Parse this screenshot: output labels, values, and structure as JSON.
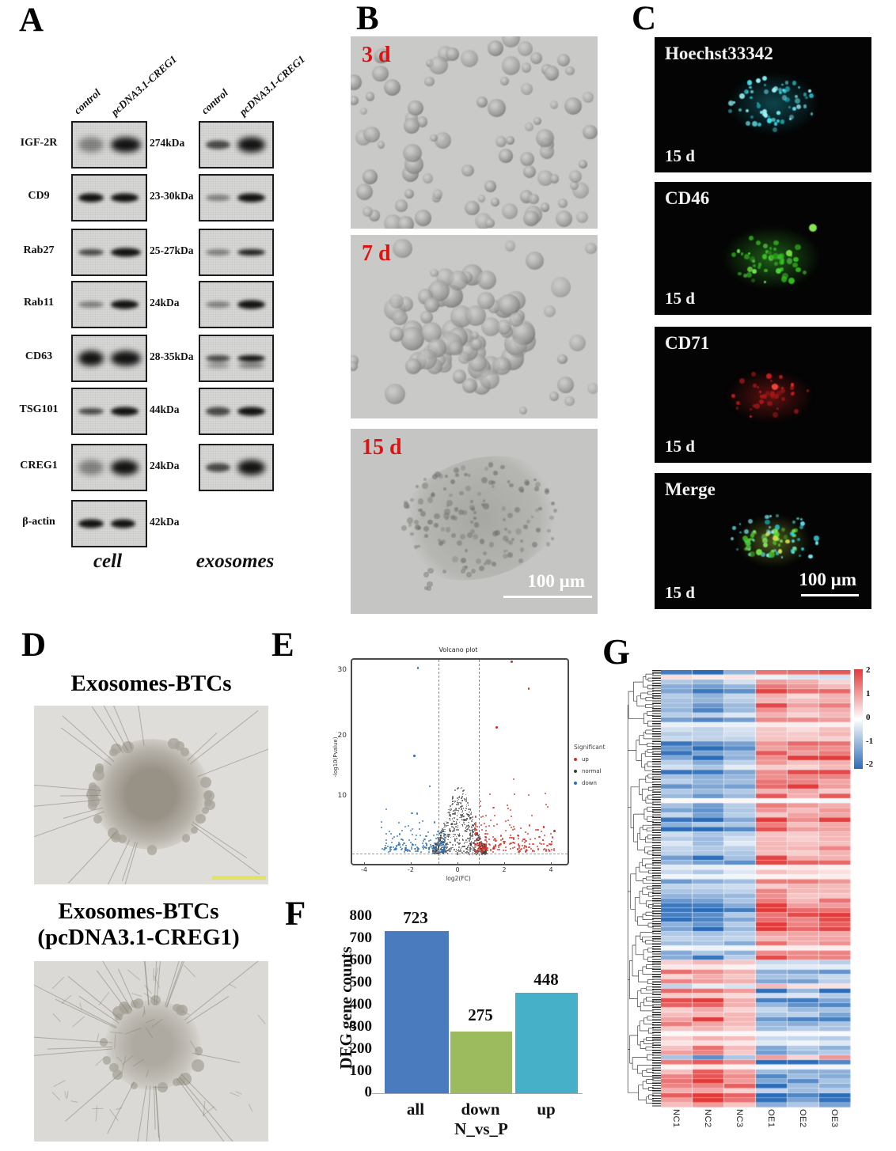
{
  "panel_a": {
    "letter": "A",
    "lane_headers_cell": [
      "control",
      "pcDNA3.1-CREG1"
    ],
    "lane_headers_exosomes": [
      "control",
      "pcDNA3.1-CREG1"
    ],
    "rows": [
      {
        "label": "IGF-2R",
        "kda": "274kDa"
      },
      {
        "label": "CD9",
        "kda": "23-30kDa"
      },
      {
        "label": "Rab27",
        "kda": "25-27kDa"
      },
      {
        "label": "Rab11",
        "kda": "24kDa"
      },
      {
        "label": "CD63",
        "kda": "28-35kDa"
      },
      {
        "label": "TSG101",
        "kda": "44kDa"
      },
      {
        "label": "CREG1",
        "kda": "24kDa"
      },
      {
        "label": "β-actin",
        "kda": "42kDa"
      }
    ],
    "group_labels": [
      "cell",
      "exosomes"
    ]
  },
  "panel_b": {
    "letter": "B",
    "timepoints": [
      "3 d",
      "7 d",
      "15 d"
    ],
    "scale_bar": "100 µm"
  },
  "panel_c": {
    "letter": "C",
    "stains": [
      "Hoechst33342",
      "CD46",
      "CD71",
      "Merge"
    ],
    "timepoint": "15 d",
    "scale_bar": "100 µm"
  },
  "panel_d": {
    "letter": "D",
    "title_top": "Exosomes-BTCs",
    "title_bottom_line1": "Exosomes-BTCs",
    "title_bottom_line2": "(pcDNA3.1-CREG1)"
  },
  "panel_e": {
    "letter": "E",
    "title": "Volcano plot",
    "ylabel": "-log10(Pvalue)",
    "xlabel": "log2(FC)",
    "yticks": [
      "30",
      "20",
      "10"
    ],
    "xticks": [
      "-4",
      "-2",
      "0",
      "2",
      "4"
    ],
    "legend_title": "Significant",
    "legend": [
      {
        "label": "up",
        "color": "#d62d20"
      },
      {
        "label": "normal",
        "color": "#3a3a3a"
      },
      {
        "label": "down",
        "color": "#2a6fbb"
      }
    ]
  },
  "panel_f": {
    "letter": "F",
    "ylabel": "DEG gene counts",
    "yticks": [
      "800",
      "700",
      "600",
      "500",
      "400",
      "300",
      "200",
      "100",
      "0"
    ],
    "categories": [
      "all",
      "down",
      "up"
    ],
    "values": [
      "723",
      "275",
      "448"
    ],
    "group_label": "N_vs_P"
  },
  "panel_g": {
    "letter": "G",
    "columns": [
      "NC1",
      "NC2",
      "NC3",
      "OE1",
      "OE2",
      "OE3"
    ],
    "colorbar_ticks": [
      "2",
      "1",
      "0",
      "-1",
      "-2"
    ]
  },
  "chart_data": [
    {
      "type": "scatter",
      "panel": "E",
      "title": "Volcano plot",
      "xlabel": "log2(FC)",
      "ylabel": "-log10(Pvalue)",
      "xlim": [
        -5,
        5
      ],
      "ylim": [
        0,
        32
      ],
      "yticks": [
        10,
        20,
        30
      ],
      "threshold_lines": {
        "vertical_log2fc": [
          -1,
          1
        ],
        "horizontal_pvalue_line": "dashed line just above y=0"
      },
      "legend_title": "Significant",
      "legend_position": "right",
      "series": [
        {
          "name": "up",
          "color": "#d62d20",
          "description": "~448 upregulated genes at log2FC > 1; dense cloud at -log10(P) 1-7, outliers near (2.8, 28), (1.7, 16), (1.5, 13)"
        },
        {
          "name": "normal",
          "color": "#3a3a3a",
          "description": "dense non-significant mound between the two vertical dashed thresholds, -log10(P) < ~8"
        },
        {
          "name": "down",
          "color": "#2a6fbb",
          "description": "~275 downregulated genes at log2FC < -1; dense cloud at -log10(P) 1-7, outliers near (-2.1, 31), (-2.3, 16), (-1.6, 12)"
        }
      ]
    },
    {
      "type": "bar",
      "panel": "F",
      "categories": [
        "all",
        "down",
        "up"
      ],
      "values": [
        723,
        275,
        448
      ],
      "data_labels": [
        723,
        275,
        448
      ],
      "xlabel": "N_vs_P",
      "ylabel": "DEG gene counts",
      "ylim": [
        0,
        800
      ],
      "ytick_step": 100,
      "bar_colors": [
        "#4a7bbf",
        "#9cba5e",
        "#45b0c8"
      ]
    },
    {
      "type": "heatmap",
      "panel": "G",
      "columns": [
        "NC1",
        "NC2",
        "NC3",
        "OE1",
        "OE2",
        "OE3"
      ],
      "rows": "~90 differentially expressed genes (row labels illegible), hierarchically clustered with left dendrogram",
      "colorbar_range": [
        -2,
        2
      ],
      "colorbar_ticks": [
        2,
        1,
        0,
        -1,
        -2
      ],
      "palette": "blue-white-red",
      "pattern": "top ~2/3 of rows: NC1-NC3 blue (low) vs OE1-OE3 red (high); bottom ~1/3 of rows: NC1-NC3 red (high) vs OE1-OE3 blue (low)"
    }
  ]
}
